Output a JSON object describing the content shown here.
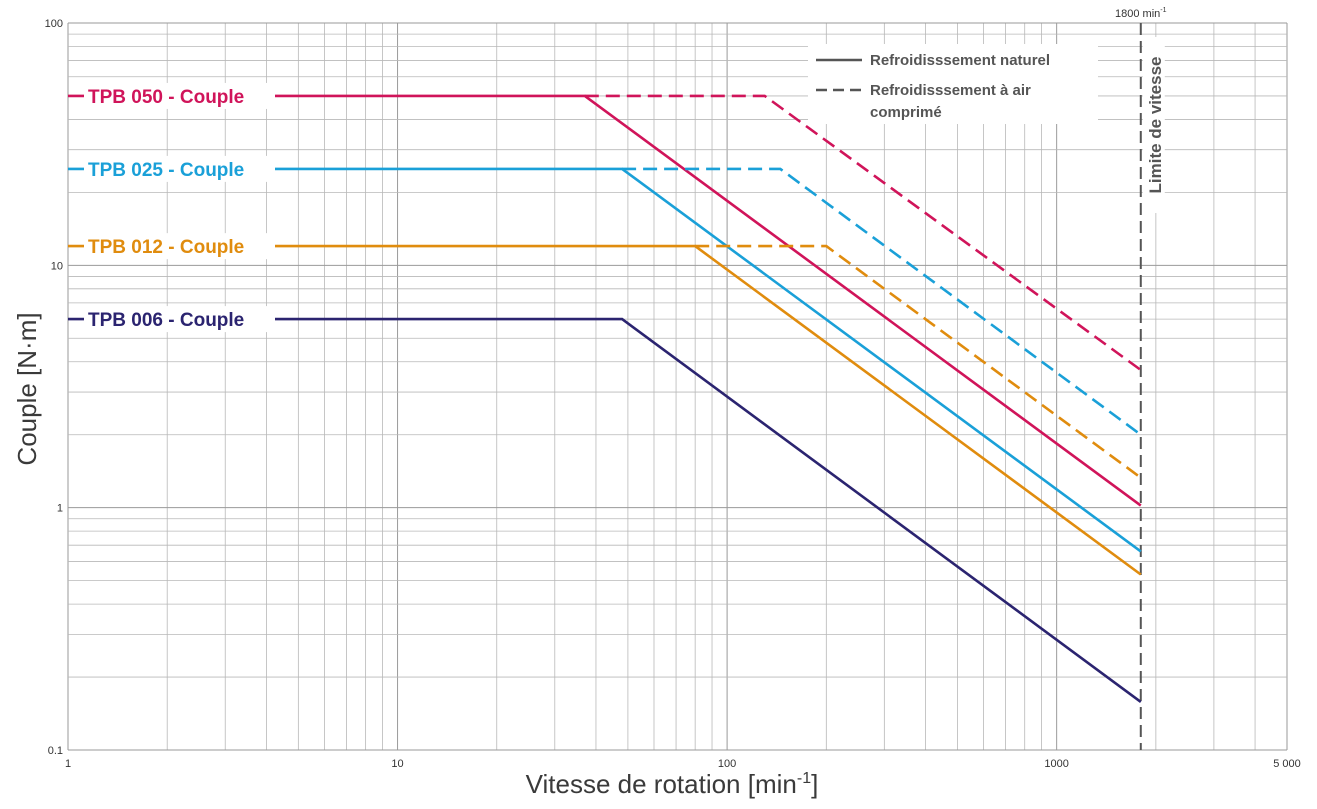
{
  "chart_data": {
    "type": "line",
    "xlabel": "Vitesse de rotation [min",
    "xlabel_sup": "-1",
    "xlabel_close": "]",
    "ylabel": "Couple [N·m]",
    "x_scale": "log",
    "y_scale": "log",
    "xlim": [
      1,
      5000
    ],
    "ylim": [
      0.1,
      100
    ],
    "x_ticks": [
      {
        "value": 1,
        "label": "1"
      },
      {
        "value": 10,
        "label": "10"
      },
      {
        "value": 100,
        "label": "100"
      },
      {
        "value": 1000,
        "label": "1000"
      },
      {
        "value": 5000,
        "label": "5 000"
      }
    ],
    "y_ticks": [
      {
        "value": 100,
        "label": "100"
      },
      {
        "value": 10,
        "label": "10"
      },
      {
        "value": 1,
        "label": "1"
      },
      {
        "value": 0.1,
        "label": "0.1"
      }
    ],
    "grid": true,
    "speed_limit": {
      "value": 1800,
      "label": "1800",
      "unit": "min",
      "unit_sup": "-1",
      "text": "Limite de vitesse"
    },
    "legend": {
      "placement": "top-right",
      "natural": "Refroidisssement naturel",
      "forced_line1": "Refroidisssement à air",
      "forced_line2": "comprimé"
    },
    "series": [
      {
        "name": "TPB 050 - Couple",
        "color": "#d0145a",
        "natural": {
          "x": [
            1,
            37,
            1800
          ],
          "y": [
            50,
            50,
            1.02
          ]
        },
        "forced": {
          "x": [
            37,
            130,
            1800
          ],
          "y": [
            50,
            50,
            3.7
          ]
        }
      },
      {
        "name": "TPB 025 - Couple",
        "color": "#1aa0d8",
        "natural": {
          "x": [
            1,
            48,
            1800
          ],
          "y": [
            25,
            25,
            0.66
          ]
        },
        "forced": {
          "x": [
            48,
            145,
            1800
          ],
          "y": [
            25,
            25,
            2.0
          ]
        }
      },
      {
        "name": "TPB 012 - Couple",
        "color": "#e08c0e",
        "natural": {
          "x": [
            1,
            80,
            1800
          ],
          "y": [
            12,
            12,
            0.53
          ]
        },
        "forced": {
          "x": [
            80,
            200,
            1800
          ],
          "y": [
            12,
            12,
            1.33
          ]
        }
      },
      {
        "name": "TPB 006 - Couple",
        "color": "#2b2470",
        "natural": {
          "x": [
            1,
            48,
            1800
          ],
          "y": [
            6,
            6,
            0.158
          ]
        }
      }
    ]
  }
}
